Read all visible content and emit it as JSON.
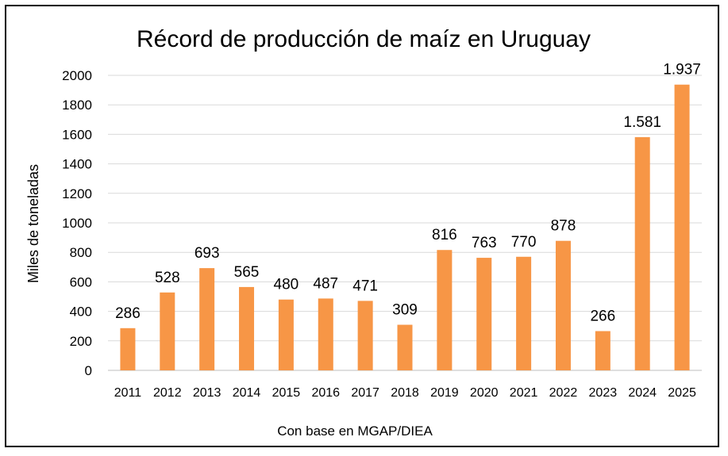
{
  "chart_data": {
    "type": "bar",
    "title": "Récord de producción de maíz en Uruguay",
    "ylabel": "Miles de toneladas",
    "xlabel": "",
    "source_note": "Con base en MGAP/DIEA",
    "ylim": [
      0,
      2000
    ],
    "yticks": [
      "0",
      "200",
      "400",
      "600",
      "800",
      "1000",
      "1200",
      "1400",
      "1600",
      "1800",
      "2000"
    ],
    "grid": true,
    "bar_color": "#F79646",
    "categories": [
      "2011",
      "2012",
      "2013",
      "2014",
      "2015",
      "2016",
      "2017",
      "2018",
      "2019",
      "2020",
      "2021",
      "2022",
      "2023",
      "2024",
      "2025"
    ],
    "values": [
      286,
      528,
      693,
      565,
      480,
      487,
      471,
      309,
      816,
      763,
      770,
      878,
      266,
      1581,
      1937
    ],
    "data_labels": [
      "286",
      "528",
      "693",
      "565",
      "480",
      "487",
      "471",
      "309",
      "816",
      "763",
      "770",
      "878",
      "266",
      "1.581",
      "1.937"
    ]
  }
}
